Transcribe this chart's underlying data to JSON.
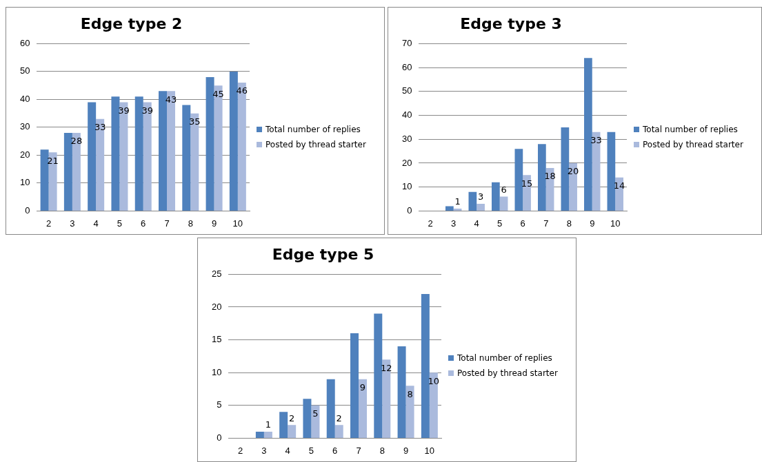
{
  "chart_data": [
    {
      "type": "bar",
      "title": "Edge type 2",
      "categories": [
        "2",
        "3",
        "4",
        "5",
        "6",
        "7",
        "8",
        "9",
        "10"
      ],
      "series": [
        {
          "name": "Total number of replies",
          "color": "#4f81bd",
          "values": [
            22,
            28,
            39,
            41,
            41,
            43,
            38,
            48,
            50
          ]
        },
        {
          "name": "Posted by thread starter",
          "color": "#aabadd",
          "values": [
            21,
            28,
            33,
            39,
            39,
            43,
            35,
            45,
            46
          ],
          "value_labels": [
            "21",
            "28",
            "33",
            "39",
            "39",
            "43",
            "35",
            "45",
            "46"
          ]
        }
      ],
      "ylim": [
        0,
        60
      ],
      "yticks": [
        0,
        10,
        20,
        30,
        40,
        50,
        60
      ],
      "grid": "y",
      "legend": "right"
    },
    {
      "type": "bar",
      "title": "Edge type 3",
      "categories": [
        "2",
        "3",
        "4",
        "5",
        "6",
        "7",
        "8",
        "9",
        "10"
      ],
      "series": [
        {
          "name": "Total number of replies",
          "color": "#4f81bd",
          "values": [
            null,
            2,
            8,
            12,
            26,
            28,
            35,
            64,
            33
          ]
        },
        {
          "name": "Posted by thread starter",
          "color": "#aabadd",
          "values": [
            null,
            1,
            3,
            6,
            15,
            18,
            20,
            33,
            14
          ],
          "value_labels": [
            null,
            "1",
            "3",
            "6",
            "15",
            "18",
            "20",
            "33",
            "14"
          ]
        }
      ],
      "ylim": [
        0,
        70
      ],
      "yticks": [
        0,
        10,
        20,
        30,
        40,
        50,
        60,
        70
      ],
      "grid": "y",
      "legend": "right"
    },
    {
      "type": "bar",
      "title": "Edge type 5",
      "categories": [
        "2",
        "3",
        "4",
        "5",
        "6",
        "7",
        "8",
        "9",
        "10"
      ],
      "series": [
        {
          "name": "Total number of replies",
          "color": "#4f81bd",
          "values": [
            null,
            1,
            4,
            6,
            9,
            16,
            19,
            14,
            22
          ]
        },
        {
          "name": "Posted by thread starter",
          "color": "#aabadd",
          "values": [
            null,
            1,
            2,
            5,
            2,
            9,
            12,
            8,
            10
          ],
          "value_labels": [
            null,
            "1",
            "2",
            "5",
            "2",
            "9",
            "12",
            "8",
            "10"
          ]
        }
      ],
      "ylim": [
        0,
        25
      ],
      "yticks": [
        0,
        5,
        10,
        15,
        20,
        25
      ],
      "grid": "y",
      "legend": "right"
    }
  ]
}
